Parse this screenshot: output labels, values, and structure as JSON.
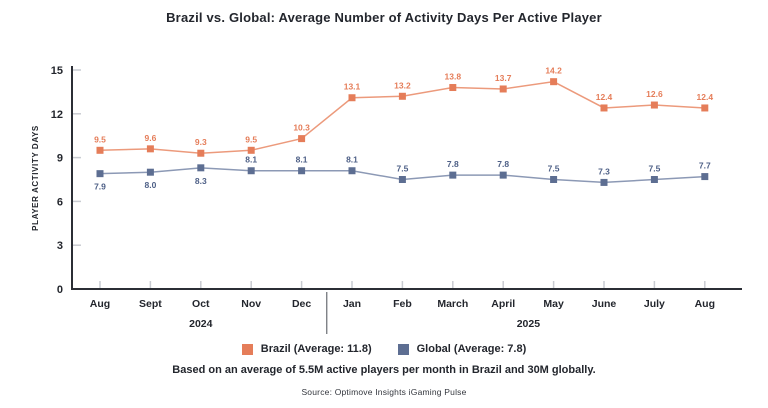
{
  "title": "Brazil vs. Global: Average Number of Activity Days Per Active Player",
  "footnote": "Based on an average of 5.5M active players per month in Brazil and 30M globally.",
  "source": "Source: Optimove Insights iGaming Pulse",
  "chart_data": {
    "type": "line",
    "categories": [
      "Aug",
      "Sept",
      "Oct",
      "Nov",
      "Dec",
      "Jan",
      "Feb",
      "March",
      "April",
      "May",
      "June",
      "July",
      "Aug"
    ],
    "year_groups": [
      {
        "label": "2024",
        "from": 0,
        "to": 4
      },
      {
        "label": "2025",
        "from": 5,
        "to": 12
      }
    ],
    "ylabel": "PLAYER ACTIVITY DAYS",
    "xlabel": "",
    "ylim": [
      0,
      15
    ],
    "yticks": [
      0,
      3,
      6,
      9,
      12,
      15
    ],
    "grid": false,
    "legend_position": "bottom",
    "series": [
      {
        "name": "Brazil",
        "legend_label": "Brazil (Average: 11.8)",
        "average": 11.8,
        "marker_color": "#e57d59",
        "line_color": "#ec9a7c",
        "label_color": "#e57d59",
        "values": [
          9.5,
          9.6,
          9.3,
          9.5,
          10.3,
          13.1,
          13.2,
          13.8,
          13.7,
          14.2,
          12.4,
          12.6,
          12.4
        ],
        "label_below_idx": []
      },
      {
        "name": "Global",
        "legend_label": "Global (Average: 7.8)",
        "average": 7.8,
        "marker_color": "#5d6e92",
        "line_color": "#8c99b5",
        "label_color": "#4d5f86",
        "values": [
          7.9,
          8.0,
          8.3,
          8.1,
          8.1,
          8.1,
          7.5,
          7.8,
          7.8,
          7.5,
          7.3,
          7.5,
          7.7
        ],
        "label_below_idx": [
          0,
          1,
          2
        ]
      }
    ],
    "colors": {
      "axis": "#2b2e35",
      "tick": "#c9ccd2",
      "text": "#23262d",
      "divider": "#4a4e55"
    }
  }
}
